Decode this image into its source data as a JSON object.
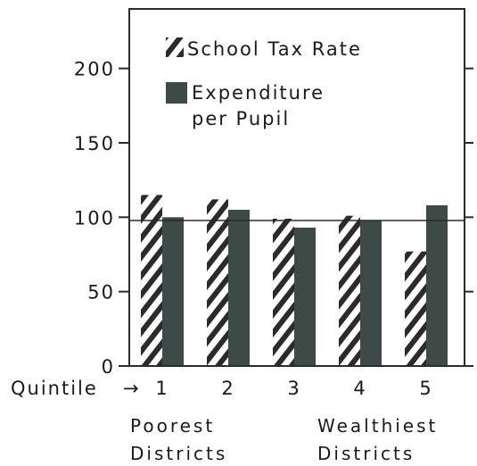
{
  "chart_data": {
    "type": "bar",
    "categories": [
      "1",
      "2",
      "3",
      "4",
      "5"
    ],
    "x_axis_prefix": "Quintile",
    "series": [
      {
        "name": "School Tax Rate",
        "values": [
          115,
          112,
          99,
          101,
          77
        ],
        "fill": "hatched"
      },
      {
        "name": "Expenditure per Pupil",
        "values": [
          100,
          105,
          93,
          98,
          108
        ],
        "fill": "solid"
      }
    ],
    "ylim": [
      0,
      240
    ],
    "yticks": [
      0,
      50,
      100,
      150,
      200
    ],
    "reference_line": 100,
    "legend_position": "top-left",
    "grid": false,
    "legend": {
      "tax_label": "School Tax Rate",
      "expenditure_line1": "Expenditure",
      "expenditure_line2": "per Pupil"
    },
    "footer": {
      "left_line1": "Poorest",
      "left_line2": "Districts",
      "right_line1": "Wealthiest",
      "right_line2": "Districts"
    },
    "colors": {
      "bar_solid": "#3e4a47",
      "hatch": "#2b2b2b",
      "axis": "#2b2b2b"
    }
  }
}
